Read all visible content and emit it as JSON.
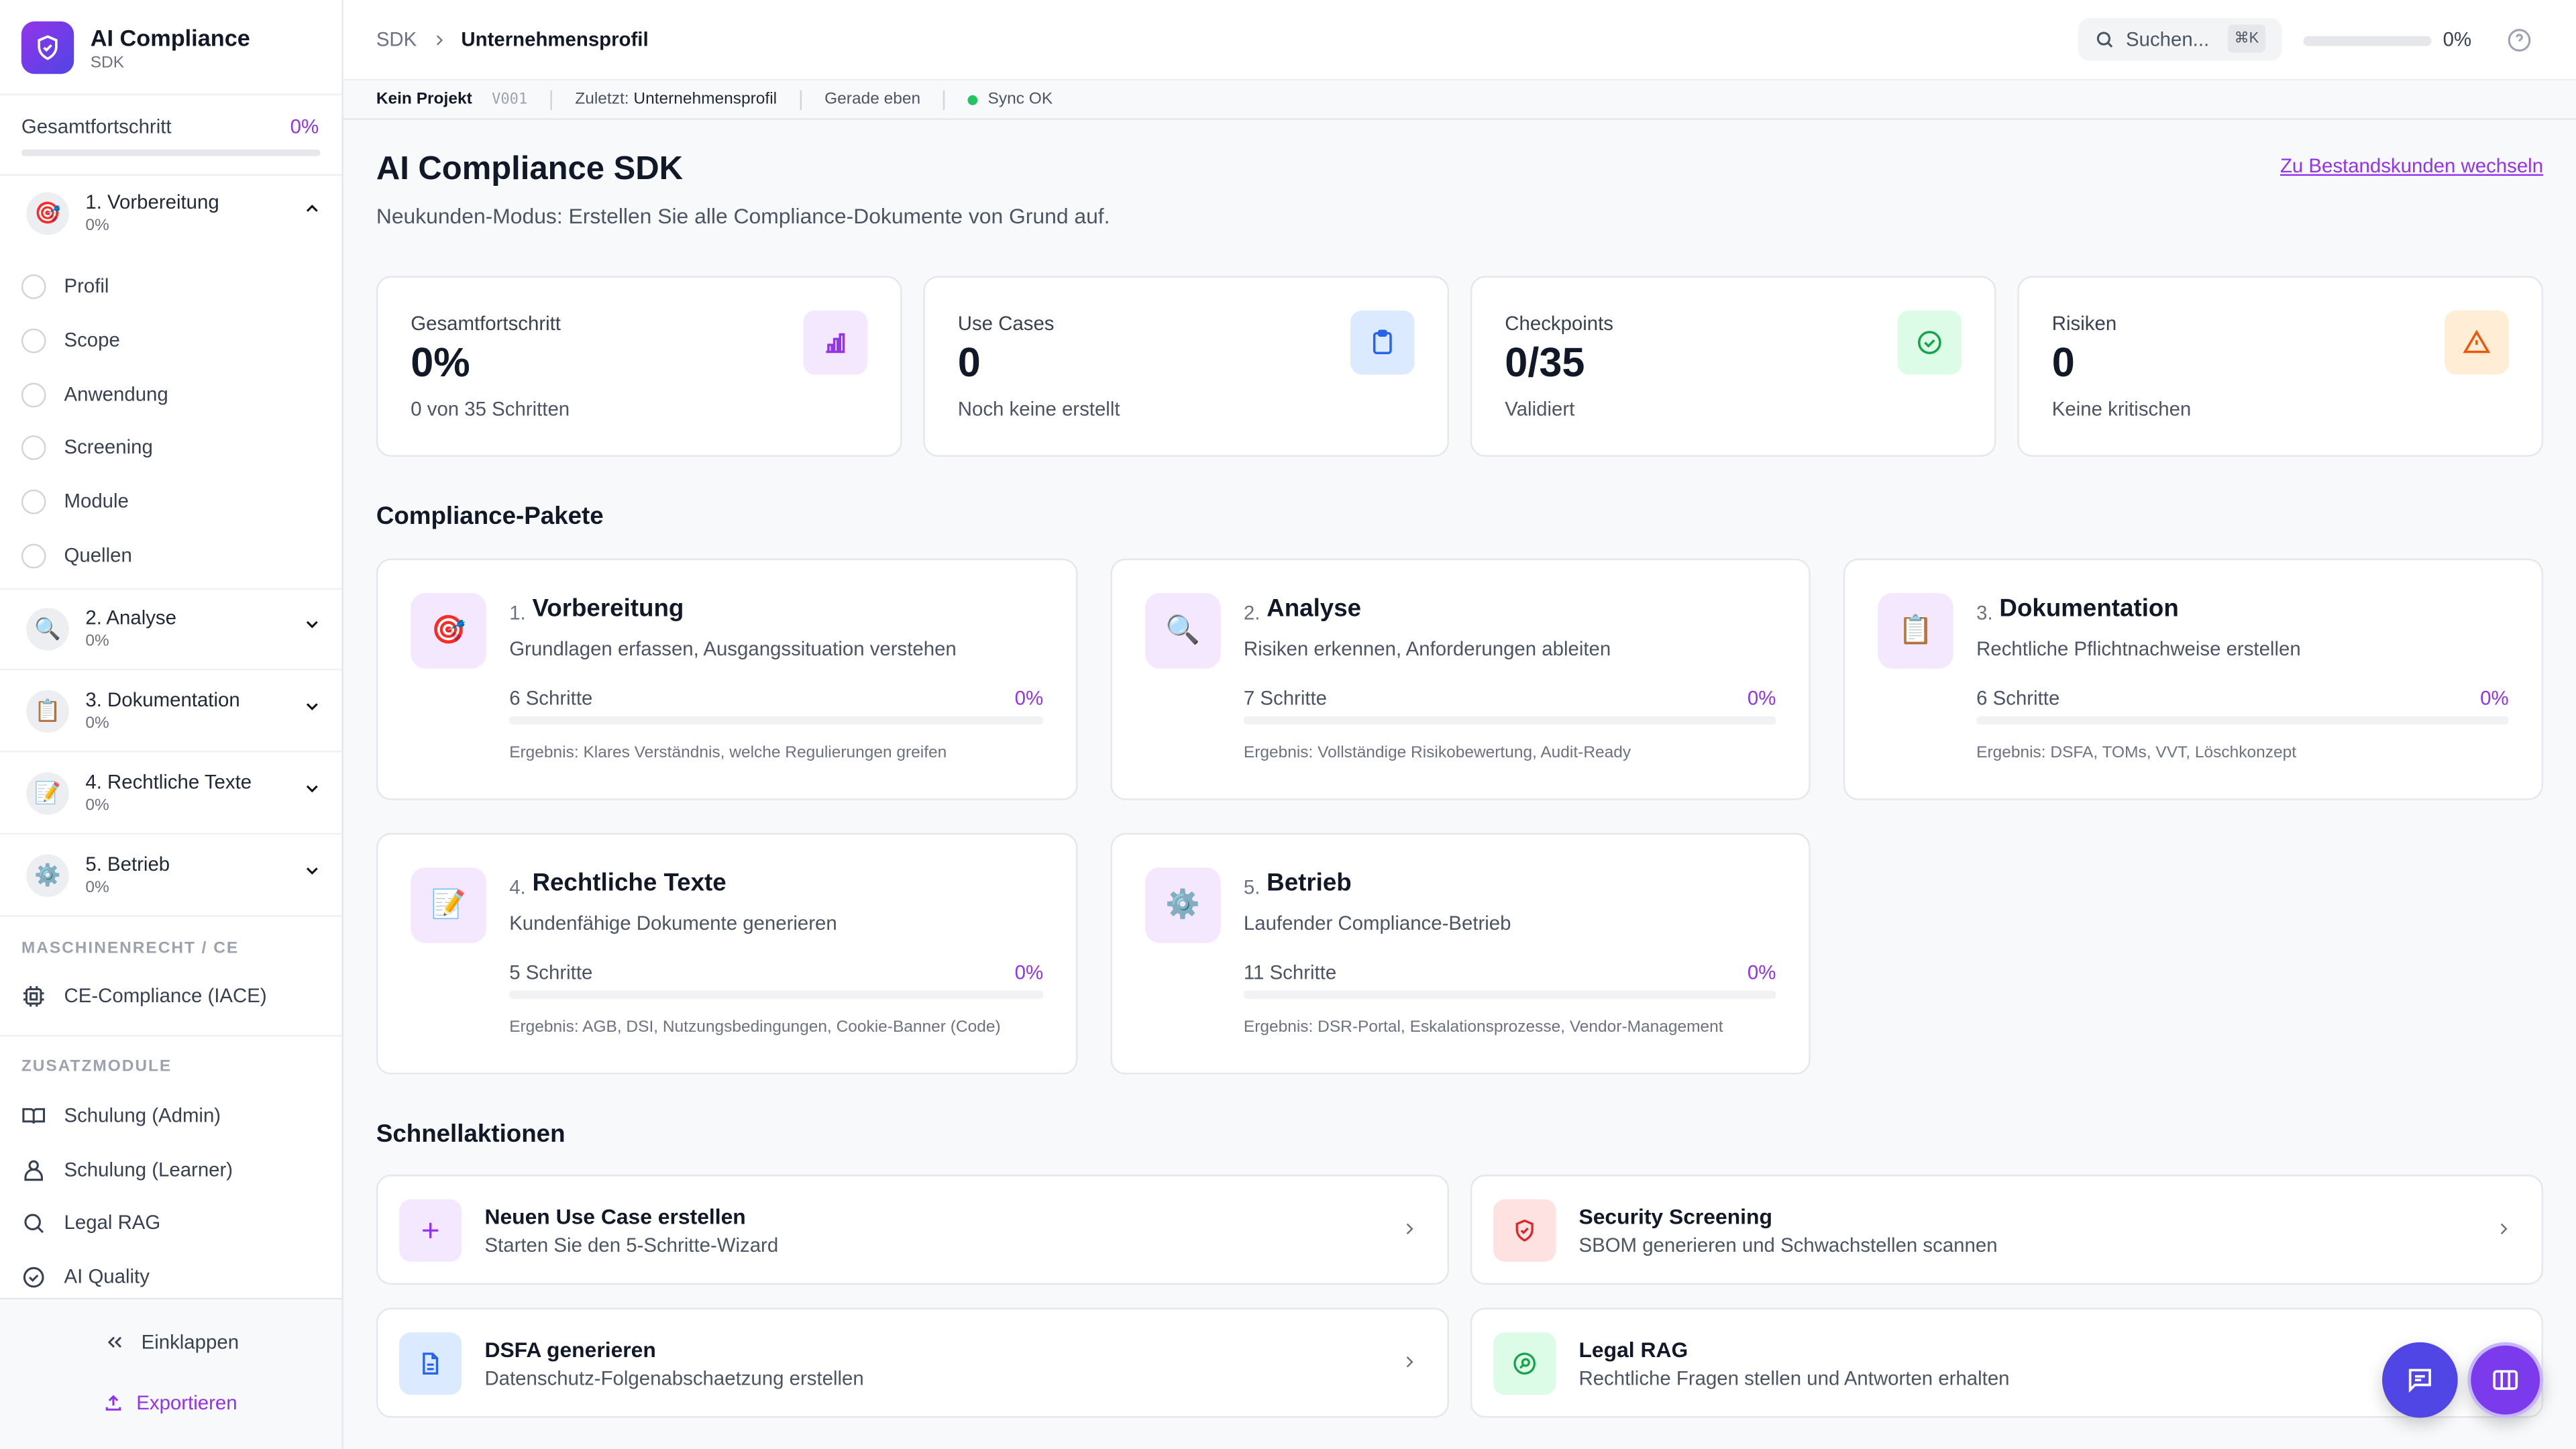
{
  "app": {
    "title": "AI Compliance",
    "subtitle": "SDK"
  },
  "sidebar": {
    "progress": {
      "label": "Gesamtfortschritt",
      "value": "0%",
      "fraction": 0
    },
    "sections": [
      {
        "label": "1. Vorbereitung",
        "progress": "0%",
        "icon": "target-emoji",
        "glyph": "🎯",
        "expanded": true,
        "items": [
          "Profil",
          "Scope",
          "Anwendung",
          "Screening",
          "Module",
          "Quellen"
        ]
      },
      {
        "label": "2. Analyse",
        "progress": "0%",
        "icon": "magnifier-emoji",
        "glyph": "🔍"
      },
      {
        "label": "3. Dokumentation",
        "progress": "0%",
        "icon": "clipboard-emoji",
        "glyph": "📋"
      },
      {
        "label": "4. Rechtliche Texte",
        "progress": "0%",
        "icon": "memo-emoji",
        "glyph": "📝"
      },
      {
        "label": "5. Betrieb",
        "progress": "0%",
        "icon": "gear-emoji",
        "glyph": "⚙️"
      }
    ],
    "machine_caption": "MASCHINENRECHT / CE",
    "machine_items": [
      {
        "label": "CE-Compliance (IACE)",
        "icon": "chip-icon"
      }
    ],
    "extra_caption": "ZUSATZMODULE",
    "extra_items": [
      {
        "label": "Schulung (Admin)",
        "icon": "book-icon"
      },
      {
        "label": "Schulung (Learner)",
        "icon": "user-icon"
      },
      {
        "label": "Legal RAG",
        "icon": "search-icon"
      },
      {
        "label": "AI Quality",
        "icon": "check-circle-icon"
      }
    ],
    "collapse": "Einklappen",
    "export": "Exportieren"
  },
  "header": {
    "breadcrumb": [
      "SDK",
      "Unternehmensprofil"
    ],
    "search_placeholder": "Suchen...",
    "shortcut": "⌘K",
    "progress": "0%",
    "progress_fraction": 0
  },
  "subbar": {
    "project": "Kein Projekt",
    "version": "V001",
    "last_label": "Zuletzt:",
    "last_value": "Unternehmensprofil",
    "time": "Gerade eben",
    "sync": "Sync OK",
    "sync_color": "#22c55e"
  },
  "main": {
    "title": "AI Compliance SDK",
    "subtitle": "Neukunden-Modus: Erstellen Sie alle Compliance-Dokumente von Grund auf.",
    "switch_link": "Zu Bestandskunden wechseln",
    "stats": [
      {
        "label": "Gesamtfortschritt",
        "value": "0%",
        "sub": "0 von 35 Schritten",
        "icon": "bar-chart-icon",
        "color": "#9333ea"
      },
      {
        "label": "Use Cases",
        "value": "0",
        "sub": "Noch keine erstellt",
        "icon": "clipboard-icon",
        "color": "#2563eb"
      },
      {
        "label": "Checkpoints",
        "value": "0/35",
        "sub": "Validiert",
        "icon": "check-circle-icon",
        "color": "#16a34a"
      },
      {
        "label": "Risiken",
        "value": "0",
        "sub": "Keine kritischen",
        "icon": "warning-icon",
        "color": "#ea580c"
      }
    ],
    "packages_title": "Compliance-Pakete",
    "packages": [
      {
        "num": "1.",
        "title": "Vorbereitung",
        "desc": "Grundlagen erfassen, Ausgangssituation verstehen",
        "steps": "6 Schritte",
        "progress": "0%",
        "result": "Ergebnis: Klares Verständnis, welche Regulierungen greifen",
        "glyph": "🎯"
      },
      {
        "num": "2.",
        "title": "Analyse",
        "desc": "Risiken erkennen, Anforderungen ableiten",
        "steps": "7 Schritte",
        "progress": "0%",
        "result": "Ergebnis: Vollständige Risikobewertung, Audit-Ready",
        "glyph": "🔍"
      },
      {
        "num": "3.",
        "title": "Dokumentation",
        "desc": "Rechtliche Pflichtnachweise erstellen",
        "steps": "6 Schritte",
        "progress": "0%",
        "result": "Ergebnis: DSFA, TOMs, VVT, Löschkonzept",
        "glyph": "📋"
      },
      {
        "num": "4.",
        "title": "Rechtliche Texte",
        "desc": "Kundenfähige Dokumente generieren",
        "steps": "5 Schritte",
        "progress": "0%",
        "result": "Ergebnis: AGB, DSI, Nutzungsbedingungen, Cookie-Banner (Code)",
        "glyph": "📝"
      },
      {
        "num": "5.",
        "title": "Betrieb",
        "desc": "Laufender Compliance-Betrieb",
        "steps": "11 Schritte",
        "progress": "0%",
        "result": "Ergebnis: DSR-Portal, Eskalationsprozesse, Vendor-Management",
        "glyph": "⚙️"
      }
    ],
    "quick_title": "Schnellaktionen",
    "quick": [
      {
        "title": "Neuen Use Case erstellen",
        "desc": "Starten Sie den 5-Schritte-Wizard",
        "icon": "plus-icon",
        "color": "#9333ea",
        "bg": "#f3e8ff"
      },
      {
        "title": "Security Screening",
        "desc": "SBOM generieren und Schwachstellen scannen",
        "icon": "shield-icon",
        "color": "#dc2626",
        "bg": "#fee2e2"
      },
      {
        "title": "DSFA generieren",
        "desc": "Datenschutz-Folgenabschaetzung erstellen",
        "icon": "document-icon",
        "color": "#2563eb",
        "bg": "#dbeafe"
      },
      {
        "title": "Legal RAG",
        "desc": "Rechtliche Fragen stellen und Antworten erhalten",
        "icon": "search-icon",
        "color": "#16a34a",
        "bg": "#dcfce7"
      }
    ]
  },
  "colors": {
    "accent": "#9333ea",
    "fab_chat": "#4f46e5",
    "fab_panel": "#7c3aed"
  }
}
